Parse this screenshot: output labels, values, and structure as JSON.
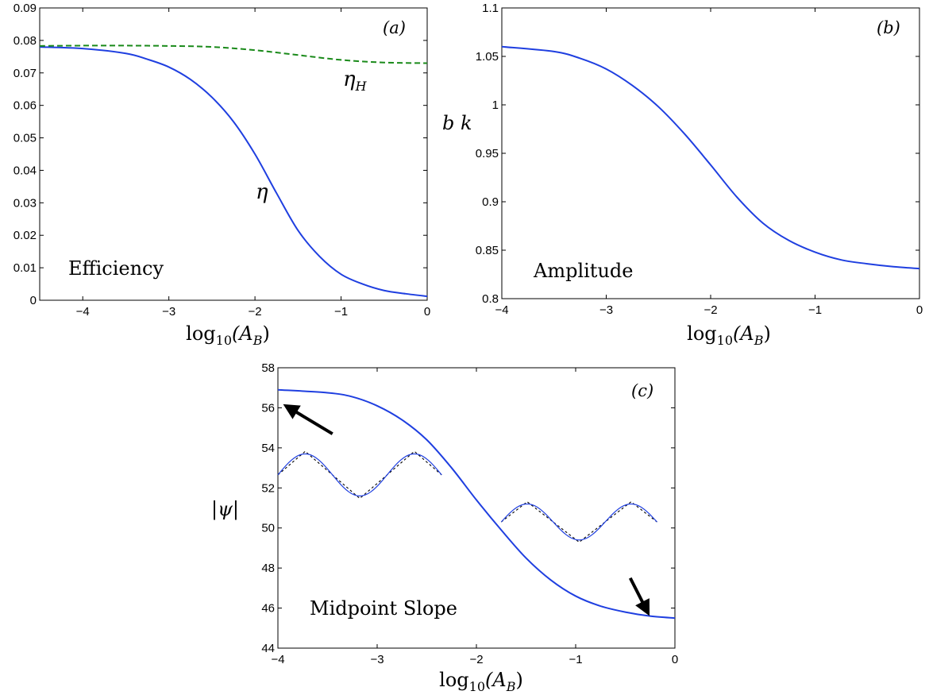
{
  "colors": {
    "blue": "#1f3fe0",
    "green": "#1a8a1a",
    "black": "#000000"
  },
  "chart_data": [
    {
      "id": "a",
      "type": "line",
      "panel_label": "(a)",
      "annotation": "Efficiency",
      "xlabel": "log10(AB)",
      "xlabel_parts": {
        "base": "log",
        "base_sub": "10",
        "open": "(A",
        "var_sub": "B",
        "close": ")"
      },
      "ylabel": "",
      "xlim": [
        -4.5,
        0
      ],
      "ylim": [
        0,
        0.09
      ],
      "xticks": [
        -4,
        -3,
        -2,
        -1,
        0
      ],
      "xtick_labels": [
        "−4",
        "−3",
        "−2",
        "−1",
        "0"
      ],
      "yticks": [
        0,
        0.01,
        0.02,
        0.03,
        0.04,
        0.05,
        0.06,
        0.07,
        0.08,
        0.09
      ],
      "ytick_labels": [
        "0",
        "0.01",
        "0.02",
        "0.03",
        "0.04",
        "0.05",
        "0.06",
        "0.07",
        "0.08",
        "0.09"
      ],
      "series": [
        {
          "name": "η",
          "color": "#1f3fe0",
          "dash": "solid",
          "x": [
            -4.5,
            -4.0,
            -3.5,
            -3.25,
            -3.0,
            -2.75,
            -2.5,
            -2.25,
            -2.0,
            -1.75,
            -1.5,
            -1.25,
            -1.0,
            -0.75,
            -0.5,
            -0.25,
            0
          ],
          "y": [
            0.078,
            0.0775,
            0.076,
            0.0742,
            0.0718,
            0.068,
            0.0625,
            0.055,
            0.045,
            0.033,
            0.0215,
            0.0135,
            0.008,
            0.005,
            0.003,
            0.002,
            0.0012
          ]
        },
        {
          "name": "ηH",
          "label_base": "η",
          "label_sub": "H",
          "color": "#1a8a1a",
          "dash": "dashed",
          "x": [
            -4.5,
            -4.0,
            -3.5,
            -3.0,
            -2.5,
            -2.0,
            -1.5,
            -1.0,
            -0.5,
            0
          ],
          "y": [
            0.0783,
            0.0784,
            0.0784,
            0.0783,
            0.078,
            0.077,
            0.0755,
            0.074,
            0.0732,
            0.073
          ]
        }
      ]
    },
    {
      "id": "b",
      "type": "line",
      "panel_label": "(b)",
      "annotation": "Amplitude",
      "xlabel": "log10(AB)",
      "xlabel_parts": {
        "base": "log",
        "base_sub": "10",
        "open": "(A",
        "var_sub": "B",
        "close": ")"
      },
      "ylabel": "b k",
      "xlim": [
        -4,
        0
      ],
      "ylim": [
        0.8,
        1.1
      ],
      "xticks": [
        -4,
        -3,
        -2,
        -1,
        0
      ],
      "xtick_labels": [
        "−4",
        "−3",
        "−2",
        "−1",
        "0"
      ],
      "yticks": [
        0.8,
        0.85,
        0.9,
        0.95,
        1,
        1.05,
        1.1
      ],
      "ytick_labels": [
        "0.8",
        "0.85",
        "0.9",
        "0.95",
        "1",
        "1.05",
        "1.1"
      ],
      "series": [
        {
          "color": "#1f3fe0",
          "dash": "solid",
          "x": [
            -4.0,
            -3.5,
            -3.25,
            -3.0,
            -2.75,
            -2.5,
            -2.25,
            -2.0,
            -1.75,
            -1.5,
            -1.25,
            -1.0,
            -0.75,
            -0.5,
            -0.25,
            0
          ],
          "y": [
            1.06,
            1.055,
            1.048,
            1.037,
            1.02,
            0.998,
            0.97,
            0.938,
            0.905,
            0.878,
            0.86,
            0.848,
            0.84,
            0.836,
            0.833,
            0.831
          ]
        }
      ]
    },
    {
      "id": "c",
      "type": "line",
      "panel_label": "(c)",
      "annotation": "Midpoint Slope",
      "xlabel": "log10(AB)",
      "xlabel_parts": {
        "base": "log",
        "base_sub": "10",
        "open": "(A",
        "var_sub": "B",
        "close": ")"
      },
      "ylabel": "|ψ|",
      "xlim": [
        -4,
        0
      ],
      "ylim": [
        44,
        58
      ],
      "xticks": [
        -4,
        -3,
        -2,
        -1,
        0
      ],
      "xtick_labels": [
        "−4",
        "−3",
        "−2",
        "−1",
        "0"
      ],
      "yticks": [
        44,
        46,
        48,
        50,
        52,
        54,
        56,
        58
      ],
      "ytick_labels": [
        "44",
        "46",
        "48",
        "50",
        "52",
        "54",
        "56",
        "58"
      ],
      "series": [
        {
          "color": "#1f3fe0",
          "dash": "solid",
          "x": [
            -4.0,
            -3.5,
            -3.25,
            -3.0,
            -2.75,
            -2.5,
            -2.25,
            -2.0,
            -1.75,
            -1.5,
            -1.25,
            -1.0,
            -0.75,
            -0.5,
            -0.25,
            0
          ],
          "y": [
            56.9,
            56.75,
            56.55,
            56.1,
            55.4,
            54.4,
            53.0,
            51.4,
            49.9,
            48.5,
            47.4,
            46.6,
            46.1,
            45.8,
            45.6,
            45.5
          ]
        }
      ],
      "insets": [
        {
          "x_range": [
            -4.0,
            -2.35
          ],
          "y_mid": 52.65,
          "y_amp": 1.05,
          "color": "#1f3fe0",
          "reference_color": "#000000",
          "reference_dash": "dotted"
        },
        {
          "x_range": [
            -1.75,
            -0.18
          ],
          "y_mid": 50.3,
          "y_amp": 0.9,
          "color": "#1f3fe0",
          "reference_color": "#000000",
          "reference_dash": "dotted"
        }
      ],
      "arrows": [
        {
          "from": [
            -3.45,
            54.7
          ],
          "to": [
            -3.92,
            56.1
          ]
        },
        {
          "from": [
            -0.45,
            47.5
          ],
          "to": [
            -0.27,
            45.75
          ]
        }
      ]
    }
  ]
}
